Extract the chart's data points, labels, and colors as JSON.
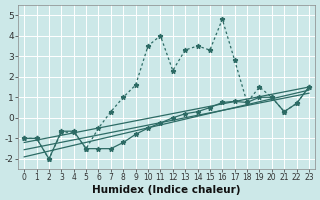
{
  "xlabel": "Humidex (Indice chaleur)",
  "bg_color": "#cce8e8",
  "grid_color": "#ffffff",
  "line_color": "#2d6b65",
  "xlim": [
    -0.5,
    23.5
  ],
  "ylim": [
    -2.5,
    5.5
  ],
  "xticks": [
    0,
    1,
    2,
    3,
    4,
    5,
    6,
    7,
    8,
    9,
    10,
    11,
    12,
    13,
    14,
    15,
    16,
    17,
    18,
    19,
    20,
    21,
    22,
    23
  ],
  "yticks": [
    -2,
    -1,
    0,
    1,
    2,
    3,
    4,
    5
  ],
  "dotted_x": [
    0,
    1,
    2,
    3,
    4,
    5,
    6,
    7,
    8,
    9,
    10,
    11,
    12,
    13,
    14,
    15,
    16,
    17,
    18,
    19,
    20,
    21,
    22,
    23
  ],
  "dotted_y": [
    -1.0,
    -1.0,
    -2.0,
    -0.7,
    -0.7,
    -1.5,
    -0.5,
    0.3,
    1.0,
    1.6,
    3.5,
    4.0,
    2.3,
    3.3,
    3.5,
    3.3,
    4.8,
    2.8,
    0.75,
    1.5,
    1.0,
    0.3,
    0.7,
    1.5
  ],
  "solid_x": [
    0,
    1,
    2,
    3,
    4,
    5,
    6,
    7,
    8,
    9,
    10,
    11,
    12,
    13,
    14,
    15,
    16,
    17,
    18,
    19,
    20,
    21,
    22,
    23
  ],
  "solid_y": [
    -1.0,
    -1.0,
    -2.0,
    -0.65,
    -0.65,
    -1.5,
    -1.5,
    -1.5,
    -1.2,
    -0.8,
    -0.5,
    -0.25,
    0.0,
    0.2,
    0.3,
    0.5,
    0.75,
    0.8,
    0.75,
    1.0,
    1.0,
    0.3,
    0.7,
    1.5
  ],
  "reg_lines": [
    [
      -1.9,
      1.35
    ],
    [
      -1.55,
      1.2
    ],
    [
      -1.2,
      1.5
    ]
  ]
}
